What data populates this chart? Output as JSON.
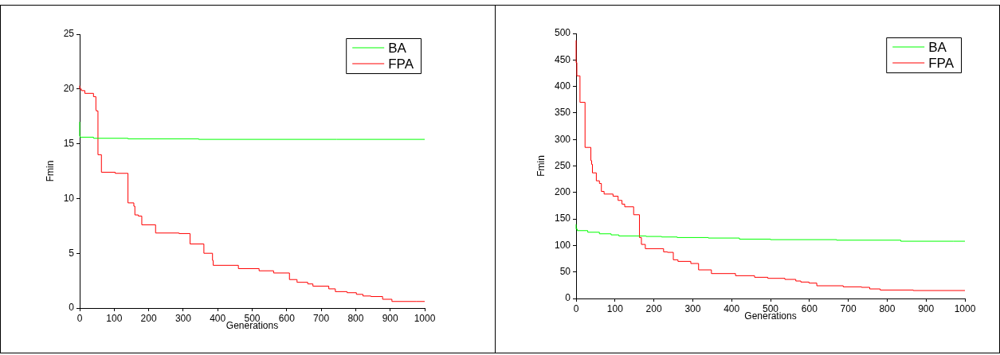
{
  "chart_data": [
    {
      "type": "step",
      "xlabel": "Generations",
      "ylabel": "Fmin",
      "xlim": [
        0,
        1000
      ],
      "xticks": [
        0,
        100,
        200,
        300,
        400,
        500,
        600,
        700,
        800,
        900,
        1000
      ],
      "ylim": [
        0,
        25
      ],
      "yticks": [
        0,
        5,
        10,
        15,
        20,
        25
      ],
      "grid": false,
      "legend": "top right",
      "series": [
        {
          "name": "BA",
          "color": "#00ff00",
          "x": [
            0,
            1,
            40,
            140,
            345,
            745,
            1000
          ],
          "values": [
            17,
            15.7,
            15.6,
            15.5,
            15.45,
            15.4,
            15.4
          ]
        },
        {
          "name": "FPA",
          "color": "#ff0000",
          "x": [
            0,
            5,
            15,
            40,
            47,
            48,
            53,
            63,
            103,
            140,
            157,
            160,
            170,
            180,
            220,
            288,
            320,
            360,
            385,
            387,
            460,
            520,
            562,
            608,
            630,
            661,
            676,
            722,
            741,
            775,
            802,
            821,
            844,
            878,
            905,
            975,
            1000
          ],
          "values": [
            20.3,
            20,
            19.85,
            19.6,
            19.3,
            18.1,
            18,
            14,
            12.4,
            12.3,
            9.6,
            9.3,
            8.5,
            8.4,
            7.6,
            6.85,
            6.8,
            5.85,
            5,
            4.35,
            3.9,
            3.6,
            3.4,
            3.2,
            2.6,
            2.35,
            2.2,
            2,
            1.75,
            1.5,
            1.4,
            1.25,
            1.1,
            1.05,
            0.8,
            0.6,
            0.6
          ]
        }
      ]
    },
    {
      "type": "step",
      "xlabel": "Generations",
      "ylabel": "Fmin",
      "xlim": [
        0,
        1000
      ],
      "xticks": [
        0,
        100,
        200,
        300,
        400,
        500,
        600,
        700,
        800,
        900,
        1000
      ],
      "ylim": [
        0,
        500
      ],
      "yticks": [
        0,
        50,
        100,
        150,
        200,
        250,
        300,
        350,
        400,
        450,
        500
      ],
      "grid": false,
      "legend": "top right",
      "series": [
        {
          "name": "BA",
          "color": "#00ff00",
          "x": [
            0,
            3,
            30,
            60,
            90,
            110,
            180,
            220,
            260,
            340,
            420,
            500,
            670,
            835,
            970,
            1000
          ],
          "values": [
            140,
            131,
            128,
            125,
            122,
            120,
            118,
            117,
            116,
            115,
            114,
            112,
            111,
            110,
            108,
            108
          ]
        },
        {
          "name": "FPA",
          "color": "#ff0000",
          "x": [
            0,
            2,
            10,
            23,
            38,
            40,
            42,
            52,
            60,
            65,
            72,
            95,
            108,
            118,
            125,
            148,
            163,
            168,
            178,
            225,
            235,
            250,
            262,
            295,
            315,
            348,
            410,
            459,
            493,
            537,
            565,
            578,
            599,
            619,
            687,
            734,
            755,
            782,
            867,
            1000
          ],
          "values": [
            487,
            445,
            420,
            370,
            285,
            260,
            253,
            237,
            222,
            217,
            202,
            197,
            193,
            185,
            178,
            173,
            158,
            115,
            102,
            94,
            88,
            87,
            73,
            70,
            66,
            54,
            47,
            43,
            40,
            38,
            36,
            33,
            31,
            29,
            24,
            22,
            21,
            18,
            16,
            15
          ]
        }
      ]
    }
  ]
}
